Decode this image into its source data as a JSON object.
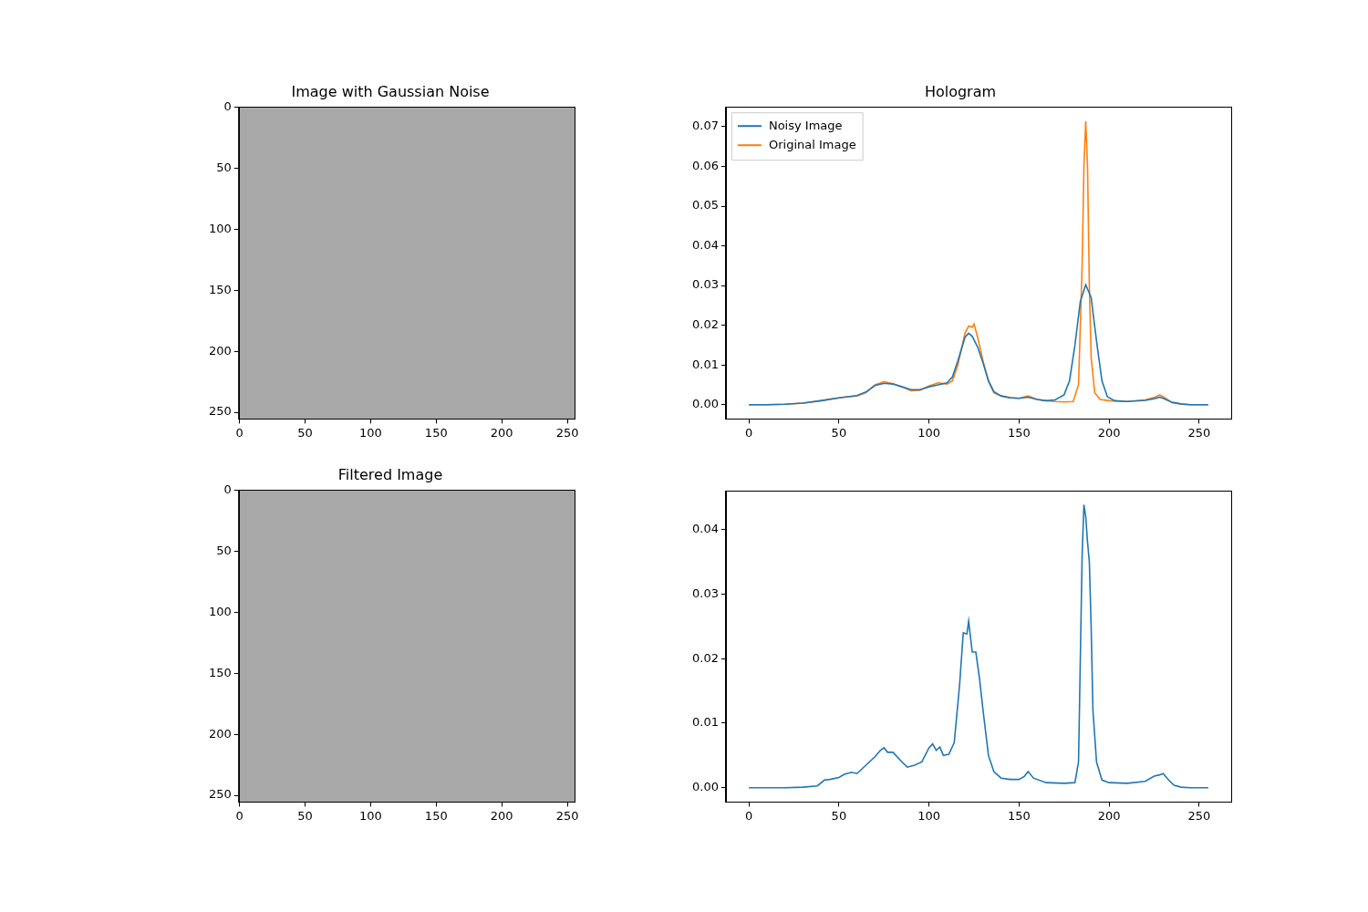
{
  "chart_data": [
    {
      "type": "image",
      "title": "Image with Gaussian Noise",
      "xlim": [
        -0.5,
        255.5
      ],
      "xticks": [
        0,
        50,
        100,
        150,
        200,
        250
      ],
      "ylim": [
        255.5,
        -0.5
      ],
      "yticks": [
        0,
        50,
        100,
        150,
        200,
        250
      ],
      "grid": false
    },
    {
      "type": "line",
      "title": "Hologram",
      "legend": "upper left",
      "grid": false,
      "xlim": [
        -12.75,
        267.75
      ],
      "xticks": [
        0,
        50,
        100,
        150,
        200,
        250
      ],
      "ylim": [
        -0.0036,
        0.075
      ],
      "yticks": [
        {
          "value": 0,
          "label": "0.00"
        },
        {
          "value": 0.01,
          "label": "0.01"
        },
        {
          "value": 0.02,
          "label": "0.02"
        },
        {
          "value": 0.03,
          "label": "0.03"
        },
        {
          "value": 0.04,
          "label": "0.04"
        },
        {
          "value": 0.05,
          "label": "0.05"
        },
        {
          "value": 0.06,
          "label": "0.06"
        },
        {
          "value": 0.07,
          "label": "0.07"
        }
      ],
      "series": [
        {
          "name": "Noisy Image",
          "color": "#1f77b4",
          "x": [
            0,
            10,
            20,
            30,
            40,
            50,
            55,
            60,
            65,
            70,
            75,
            80,
            85,
            90,
            95,
            100,
            105,
            110,
            113,
            116,
            118,
            120,
            122,
            124,
            127,
            130,
            133,
            136,
            140,
            145,
            150,
            155,
            160,
            165,
            170,
            175,
            178,
            181,
            184,
            187,
            190,
            193,
            196,
            199,
            203,
            210,
            220,
            225,
            228,
            230,
            235,
            240,
            245,
            255
          ],
          "values": [
            0,
            0,
            0.0001,
            0.0004,
            0.001,
            0.0017,
            0.002,
            0.0023,
            0.0032,
            0.0048,
            0.0054,
            0.0052,
            0.0045,
            0.0038,
            0.0038,
            0.0045,
            0.005,
            0.0055,
            0.007,
            0.011,
            0.014,
            0.017,
            0.018,
            0.0172,
            0.0145,
            0.0105,
            0.006,
            0.0033,
            0.0022,
            0.0017,
            0.0016,
            0.0019,
            0.0013,
            0.001,
            0.0012,
            0.0025,
            0.006,
            0.015,
            0.026,
            0.0302,
            0.027,
            0.016,
            0.006,
            0.002,
            0.001,
            0.0008,
            0.0011,
            0.0015,
            0.0019,
            0.0016,
            0.0006,
            0.0002,
            0,
            0
          ]
        },
        {
          "name": "Original Image",
          "color": "#ff7f0e",
          "x": [
            0,
            10,
            20,
            30,
            40,
            50,
            55,
            60,
            65,
            70,
            75,
            80,
            85,
            90,
            95,
            100,
            105,
            110,
            113,
            116,
            118,
            120,
            122,
            124,
            125,
            127,
            130,
            133,
            136,
            140,
            145,
            150,
            155,
            160,
            165,
            170,
            175,
            180,
            183,
            185,
            186,
            187,
            188,
            189,
            190,
            192,
            195,
            200,
            210,
            220,
            225,
            228,
            230,
            235,
            240,
            245,
            255
          ],
          "values": [
            0,
            0,
            0.0001,
            0.0004,
            0.001,
            0.0017,
            0.002,
            0.0022,
            0.003,
            0.005,
            0.0058,
            0.0053,
            0.0045,
            0.0035,
            0.0036,
            0.0047,
            0.0055,
            0.0052,
            0.006,
            0.01,
            0.014,
            0.018,
            0.0198,
            0.0195,
            0.0203,
            0.017,
            0.011,
            0.006,
            0.003,
            0.0022,
            0.0018,
            0.0016,
            0.0022,
            0.0013,
            0.001,
            0.0008,
            0.0007,
            0.0008,
            0.005,
            0.035,
            0.06,
            0.0714,
            0.06,
            0.03,
            0.012,
            0.003,
            0.0013,
            0.001,
            0.0008,
            0.0012,
            0.0018,
            0.0025,
            0.002,
            0.0005,
            0.0001,
            0,
            0
          ]
        }
      ]
    },
    {
      "type": "image",
      "title": "Filtered Image",
      "xlim": [
        -0.5,
        255.5
      ],
      "xticks": [
        0,
        50,
        100,
        150,
        200,
        250
      ],
      "ylim": [
        255.5,
        -0.5
      ],
      "yticks": [
        0,
        50,
        100,
        150,
        200,
        250
      ],
      "grid": false
    },
    {
      "type": "line",
      "grid": false,
      "xlim": [
        -12.75,
        267.75
      ],
      "xticks": [
        0,
        50,
        100,
        150,
        200,
        250
      ],
      "ylim": [
        -0.0022,
        0.046
      ],
      "yticks": [
        {
          "value": 0,
          "label": "0.00"
        },
        {
          "value": 0.01,
          "label": "0.01"
        },
        {
          "value": 0.02,
          "label": "0.02"
        },
        {
          "value": 0.03,
          "label": "0.03"
        },
        {
          "value": 0.04,
          "label": "0.04"
        }
      ],
      "series": [
        {
          "color": "#1f77b4",
          "x": [
            0,
            20,
            30,
            38,
            42,
            45,
            50,
            53,
            57,
            60,
            65,
            70,
            73,
            75,
            77,
            80,
            85,
            88,
            92,
            96,
            100,
            102,
            104,
            106,
            108,
            111,
            114,
            117,
            119,
            121,
            122,
            124,
            126,
            128,
            130,
            133,
            136,
            140,
            145,
            150,
            153,
            155,
            158,
            165,
            175,
            181,
            183,
            184,
            185,
            186,
            187,
            188,
            189,
            190,
            191,
            193,
            196,
            200,
            210,
            220,
            225,
            228,
            230,
            233,
            236,
            240,
            245,
            255
          ],
          "values": [
            0,
            0,
            0.0001,
            0.0003,
            0.0012,
            0.0013,
            0.0016,
            0.0021,
            0.0024,
            0.0022,
            0.0035,
            0.0048,
            0.0058,
            0.0062,
            0.0055,
            0.0055,
            0.004,
            0.0032,
            0.0035,
            0.004,
            0.0062,
            0.0068,
            0.0058,
            0.0063,
            0.005,
            0.0052,
            0.007,
            0.016,
            0.024,
            0.0238,
            0.0258,
            0.021,
            0.021,
            0.017,
            0.012,
            0.005,
            0.0025,
            0.0015,
            0.0013,
            0.0013,
            0.0018,
            0.0025,
            0.0015,
            0.0008,
            0.0007,
            0.0008,
            0.004,
            0.02,
            0.036,
            0.0438,
            0.042,
            0.038,
            0.035,
            0.025,
            0.012,
            0.004,
            0.0012,
            0.0008,
            0.0007,
            0.001,
            0.0018,
            0.002,
            0.0022,
            0.0012,
            0.0004,
            0.0001,
            0,
            0
          ]
        }
      ]
    }
  ]
}
